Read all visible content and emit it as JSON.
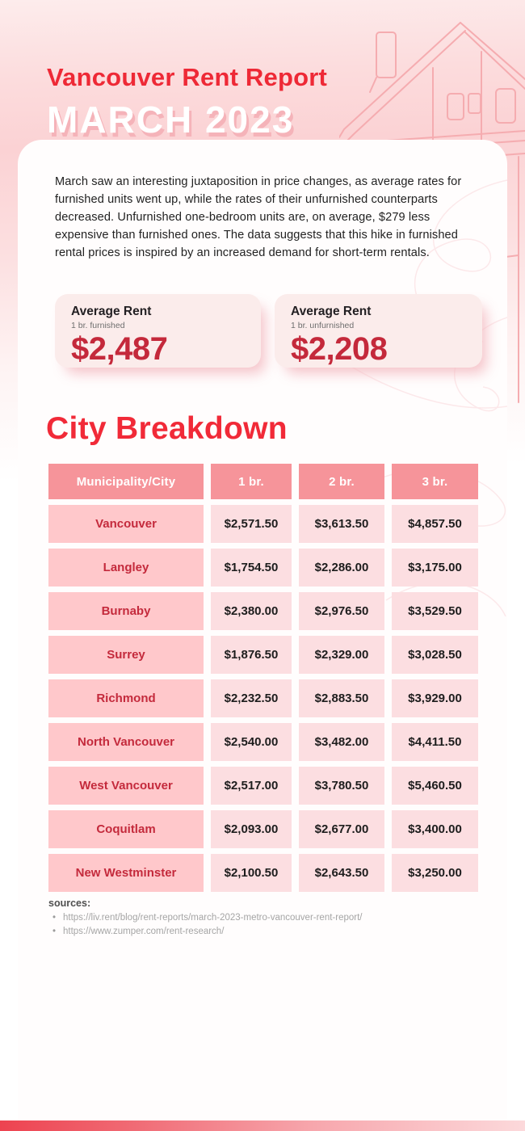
{
  "header": {
    "title": "Vancouver Rent Report",
    "subtitle": "MARCH 2023"
  },
  "intro": "March saw an interesting juxtaposition in price changes, as average rates for furnished units went up, while the rates of their unfurnished counterparts decreased. Unfurnished one-bedroom units are, on average, $279 less expensive than furnished ones. The data suggests that this hike in furnished rental prices is inspired by an increased demand for short-term rentals.",
  "stat_cards": [
    {
      "title": "Average Rent",
      "subtitle": "1 br. furnished",
      "value": "$2,487"
    },
    {
      "title": "Average Rent",
      "subtitle": "1 br. unfurnished",
      "value": "$2,208"
    }
  ],
  "section_title": "City Breakdown",
  "table": {
    "headers": [
      "Municipality/City",
      "1 br.",
      "2 br.",
      "3 br."
    ],
    "rows": [
      {
        "city": "Vancouver",
        "values": [
          "$2,571.50",
          "$3,613.50",
          "$4,857.50"
        ]
      },
      {
        "city": "Langley",
        "values": [
          "$1,754.50",
          "$2,286.00",
          "$3,175.00"
        ]
      },
      {
        "city": "Burnaby",
        "values": [
          "$2,380.00",
          "$2,976.50",
          "$3,529.50"
        ]
      },
      {
        "city": "Surrey",
        "values": [
          "$1,876.50",
          "$2,329.00",
          "$3,028.50"
        ]
      },
      {
        "city": "Richmond",
        "values": [
          "$2,232.50",
          "$2,883.50",
          "$3,929.00"
        ]
      },
      {
        "city": "North Vancouver",
        "values": [
          "$2,540.00",
          "$3,482.00",
          "$4,411.50"
        ]
      },
      {
        "city": "West Vancouver",
        "values": [
          "$2,517.00",
          "$3,780.50",
          "$5,460.50"
        ]
      },
      {
        "city": "Coquitlam",
        "values": [
          "$2,093.00",
          "$2,677.00",
          "$3,400.00"
        ]
      },
      {
        "city": "New Westminster",
        "values": [
          "$2,100.50",
          "$2,643.50",
          "$3,250.00"
        ]
      }
    ]
  },
  "sources": {
    "label": "sources:",
    "items": [
      "https://liv.rent/blog/rent-reports/march-2023-metro-vancouver-rent-report/",
      "https://www.zumper.com/rent-research/"
    ]
  },
  "colors": {
    "accent_red": "#ee2936",
    "crimson": "#c4293b",
    "table_header": "#f6949a",
    "city_cell": "#ffc8cb",
    "value_cell": "#fcdee1",
    "footer_gradient_start": "#ed4350",
    "footer_gradient_end": "#fcd9db"
  }
}
